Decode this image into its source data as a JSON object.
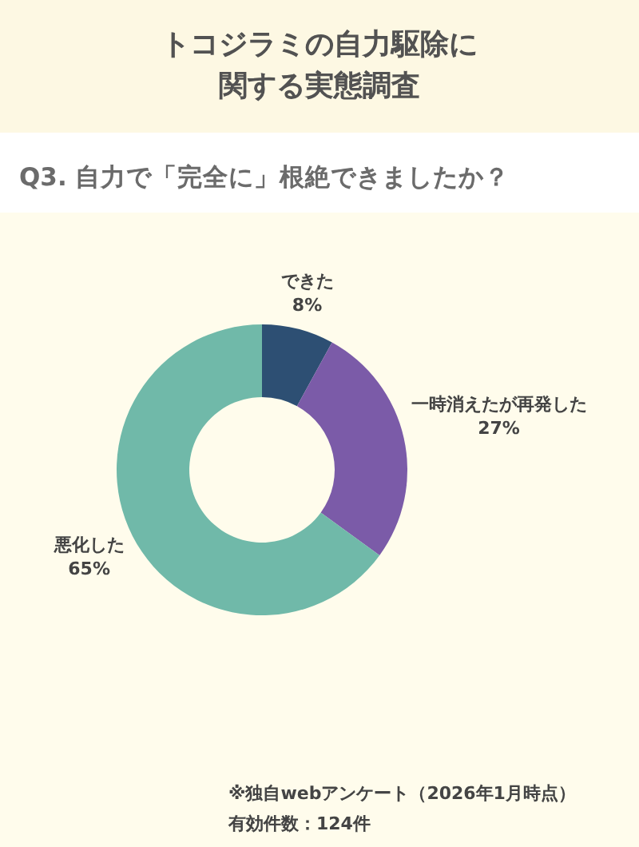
{
  "chart_data": {
    "type": "donut",
    "title": "トコジラミの自力駆除に関する実態調査",
    "subtitle": "Q3. 自力で「完全に」根絶できましたか？",
    "categories": [
      "できた",
      "一時消えたが再発した",
      "悪化した"
    ],
    "values": [
      8,
      27,
      65
    ],
    "colors": [
      "#2d4f73",
      "#7b5ba8",
      "#70b9a9"
    ],
    "value_labels": [
      "8%",
      "27%",
      "65%"
    ],
    "annotations": [
      "※独自webアンケート（2026年1月時点）",
      "有効件数：124件"
    ]
  }
}
